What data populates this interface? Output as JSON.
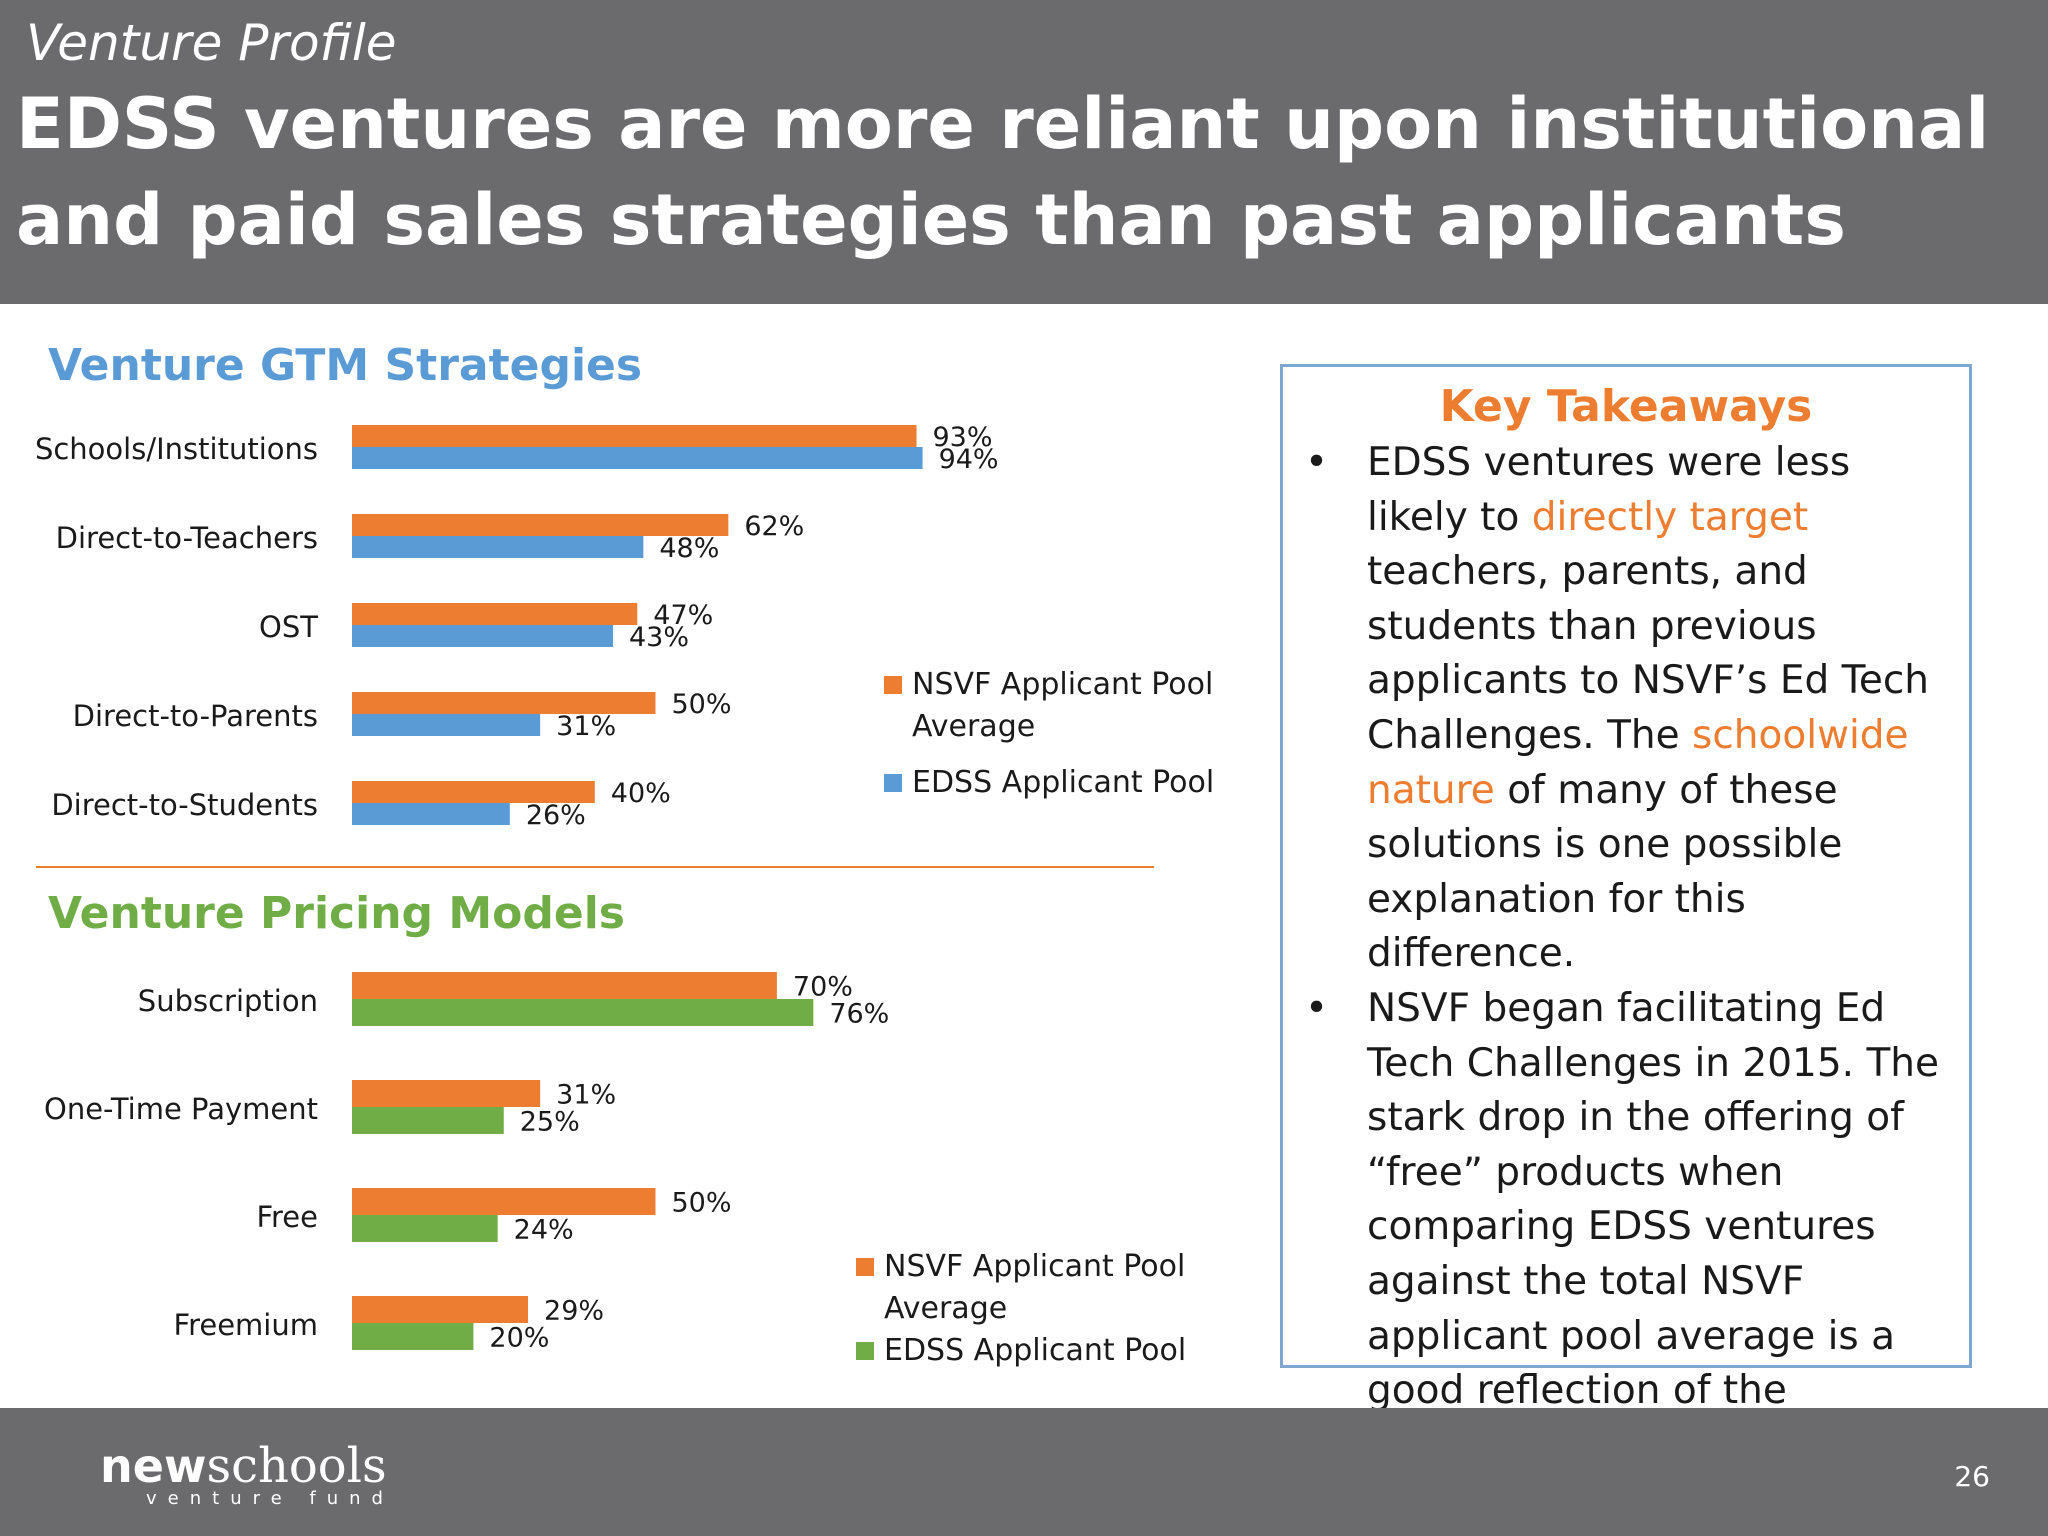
{
  "header": {
    "section_label": "Venture Profile",
    "title": "EDSS ventures are more reliant upon institutional and paid sales strategies than past applicants"
  },
  "colors": {
    "header_bg": "#6b6b6e",
    "nsvf": "#ed7d31",
    "edss_gtm": "#5b9bd5",
    "edss_pricing": "#70ad47",
    "gtm_title": "#5b9bd5",
    "pricing_title": "#70ad47"
  },
  "chart_data": [
    {
      "type": "bar",
      "orientation": "horizontal",
      "title": "Venture GTM Strategies",
      "categories": [
        "Schools/Institutions",
        "Direct-to-Teachers",
        "OST",
        "Direct-to-Parents",
        "Direct-to-Students"
      ],
      "series": [
        {
          "name": "NSVF Applicant Pool Average",
          "values": [
            93,
            62,
            47,
            50,
            40
          ],
          "labels": [
            "93%",
            "62%",
            "47%",
            "50%",
            "40%"
          ],
          "color": "#ed7d31"
        },
        {
          "name": "EDSS Applicant Pool",
          "values": [
            94,
            48,
            43,
            31,
            26
          ],
          "labels": [
            "94%",
            "48%",
            "43%",
            "31%",
            "26%"
          ],
          "color": "#5b9bd5"
        }
      ],
      "xlim": [
        0,
        100
      ],
      "grid": false,
      "legend": "right"
    },
    {
      "type": "bar",
      "orientation": "horizontal",
      "title": "Venture Pricing Models",
      "categories": [
        "Subscription",
        "One-Time Payment",
        "Free",
        "Freemium"
      ],
      "series": [
        {
          "name": "NSVF Applicant Pool Average",
          "values": [
            70,
            31,
            50,
            29
          ],
          "labels": [
            "70%",
            "31%",
            "50%",
            "29%"
          ],
          "color": "#ed7d31"
        },
        {
          "name": "EDSS Applicant Pool",
          "values": [
            76,
            25,
            24,
            20
          ],
          "labels": [
            "76%",
            "25%",
            "24%",
            "20%"
          ],
          "color": "#70ad47"
        }
      ],
      "xlim": [
        0,
        100
      ],
      "grid": false,
      "legend": "bottom-right"
    }
  ],
  "legends": {
    "gtm": {
      "nsvf_line1": "NSVF Applicant Pool",
      "nsvf_line2": "Average",
      "edss": "EDSS Applicant Pool"
    },
    "pricing": {
      "nsvf_line1": "NSVF Applicant Pool",
      "nsvf_line2": "Average",
      "edss": "EDSS Applicant Pool"
    }
  },
  "takeaways": {
    "title": "Key Takeaways",
    "bullet1": {
      "t1": "EDSS ventures were less likely to ",
      "hl1": "directly target",
      "t2": " teachers, parents, and students than previous applicants to NSVF’s Ed Tech Challenges. The ",
      "hl2": "schoolwide nature",
      "t3": " of many of these solutions is one possible explanation for this difference."
    },
    "bullet2": "NSVF began facilitating Ed Tech Challenges in 2015. The stark drop in the offering of “free” products when comparing EDSS ventures against the total NSVF applicant pool average is a good reflection of the market’s transition over the past five years."
  },
  "footer": {
    "logo_bold": "new",
    "logo_serif": "schools",
    "logo_tag": "venture fund",
    "page_number": "26"
  }
}
